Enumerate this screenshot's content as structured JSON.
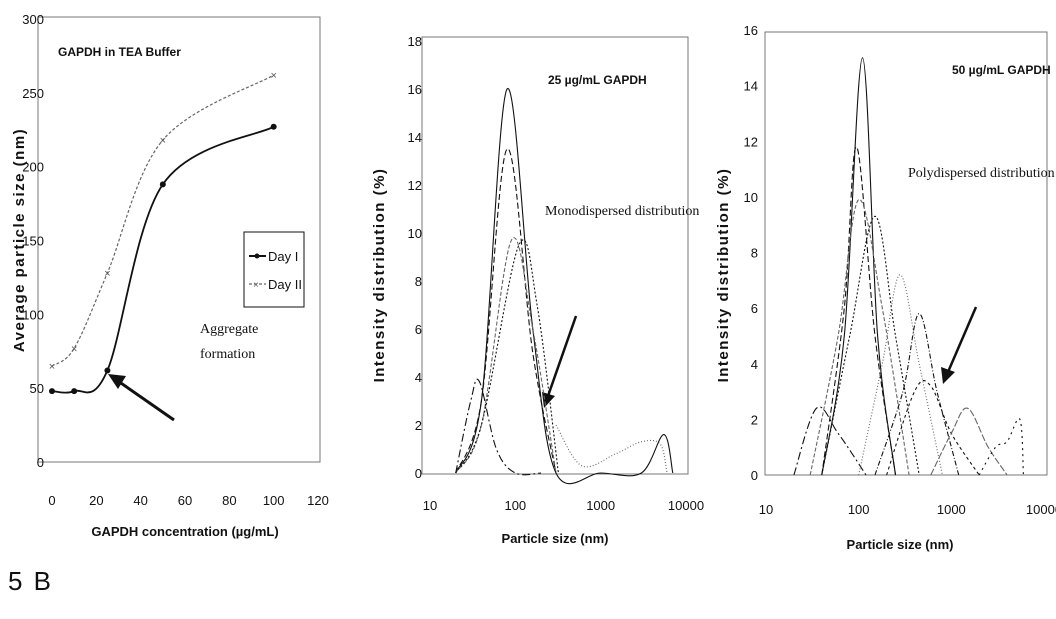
{
  "figure_label": "5 B",
  "chart_data": [
    {
      "type": "line",
      "panel_title": "GAPDH in TEA Buffer",
      "xlabel": "GAPDH concentration (µg/mL)",
      "ylabel": "Average particle size (nm)",
      "xlim": [
        0,
        120
      ],
      "ylim": [
        0,
        300
      ],
      "xticks": [
        0,
        20,
        40,
        60,
        80,
        100,
        120
      ],
      "yticks": [
        0,
        50,
        100,
        150,
        200,
        250,
        300
      ],
      "series": [
        {
          "name": "Day I",
          "x": [
            0,
            10,
            25,
            50,
            100
          ],
          "y": [
            48,
            48,
            62,
            188,
            227
          ]
        },
        {
          "name": "Day II",
          "x": [
            0,
            10,
            25,
            50,
            100
          ],
          "y": [
            65,
            77,
            128,
            218,
            262
          ]
        }
      ],
      "annotations": [
        "Aggregate",
        "formation"
      ]
    },
    {
      "type": "line",
      "panel_title": "25 µg/mL GAPDH",
      "xlabel": "Particle size (nm)",
      "ylabel": "Intensity distribution (%)",
      "xscale": "log",
      "xlim": [
        10,
        10000
      ],
      "ylim": [
        0,
        18
      ],
      "xticks": [
        10,
        100,
        1000,
        10000
      ],
      "yticks": [
        0,
        2,
        4,
        6,
        8,
        10,
        12,
        14,
        16,
        18
      ],
      "series": [
        {
          "x": [
            20,
            40,
            80,
            160,
            300,
            1000,
            3000,
            5500,
            7000
          ],
          "y": [
            0,
            3,
            16,
            6,
            0,
            0,
            0,
            1.6,
            0
          ]
        },
        {
          "x": [
            20,
            40,
            80,
            160,
            300
          ],
          "y": [
            0,
            3,
            13.5,
            5,
            0
          ]
        },
        {
          "x": [
            20,
            40,
            90,
            160,
            300
          ],
          "y": [
            0,
            2,
            9.7,
            6,
            0
          ]
        },
        {
          "x": [
            20,
            40,
            110,
            180,
            320
          ],
          "y": [
            0,
            2,
            9.5,
            7,
            0
          ]
        },
        {
          "x": [
            20,
            30,
            38,
            60,
            100,
            200
          ],
          "y": [
            0,
            3,
            3.8,
            1,
            0,
            0
          ]
        },
        {
          "x": [
            300,
            600,
            1500,
            3000,
            5000,
            6000
          ],
          "y": [
            2,
            0.3,
            0.8,
            1.3,
            1.2,
            0
          ]
        }
      ],
      "annotations": [
        "Monodispersed distribution"
      ]
    },
    {
      "type": "line",
      "panel_title": "50 µg/mL GAPDH",
      "xlabel": "Particle size (nm)",
      "ylabel": "Intensity distribution (%)",
      "xscale": "log",
      "xlim": [
        10,
        10000
      ],
      "ylim": [
        0,
        16
      ],
      "xticks": [
        10,
        100,
        1000,
        10000
      ],
      "yticks": [
        0,
        2,
        4,
        6,
        8,
        10,
        12,
        14,
        16
      ],
      "series": [
        {
          "x": [
            40,
            70,
            110,
            160,
            250
          ],
          "y": [
            0,
            5,
            15,
            5,
            0
          ]
        },
        {
          "x": [
            40,
            70,
            95,
            150,
            250
          ],
          "y": [
            0,
            6,
            11.8,
            5,
            0
          ]
        },
        {
          "x": [
            30,
            60,
            100,
            180,
            350
          ],
          "y": [
            0,
            5,
            9.9,
            6,
            0
          ]
        },
        {
          "x": [
            40,
            80,
            150,
            250,
            450
          ],
          "y": [
            0,
            5,
            9.3,
            5,
            0
          ]
        },
        {
          "x": [
            20,
            35,
            60,
            120
          ],
          "y": [
            0,
            2.4,
            1.5,
            0
          ]
        },
        {
          "x": [
            100,
            180,
            280,
            450,
            800
          ],
          "y": [
            0,
            4,
            7.2,
            4,
            0
          ]
        },
        {
          "x": [
            150,
            300,
            450,
            700,
            1200
          ],
          "y": [
            0,
            3,
            5.8,
            3,
            0
          ]
        },
        {
          "x": [
            200,
            400,
            600,
            1000,
            2000
          ],
          "y": [
            0,
            3,
            3.2,
            1.5,
            0
          ]
        },
        {
          "x": [
            600,
            1000,
            1500,
            2500,
            4000
          ],
          "y": [
            0,
            1.5,
            2.4,
            1,
            0
          ]
        },
        {
          "x": [
            2000,
            3000,
            4000,
            5500,
            6000
          ],
          "y": [
            0,
            1,
            1.2,
            2,
            0
          ]
        }
      ],
      "annotations": [
        "Polydispersed distribution"
      ]
    }
  ]
}
